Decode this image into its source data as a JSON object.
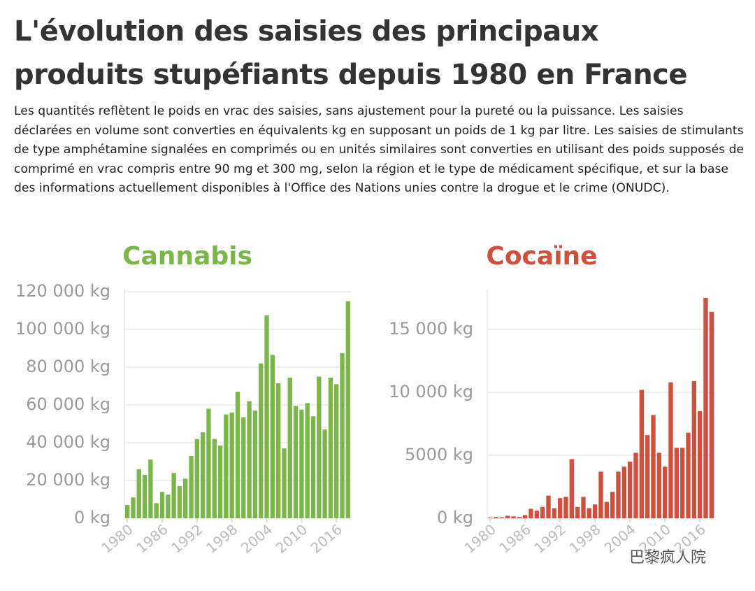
{
  "title": "L'évolution des saisies des principaux produits stupéfiants depuis 1980 en France",
  "subtitle": "Les quantités reflètent le poids en vrac des saisies, sans ajustement pour la pureté ou la puissance. Les saisies déclarées en volume sont converties en équivalents kg en supposant un poids de 1 kg par litre. Les saisies de stimulants de type amphétamine signalées en comprimés ou en unités similaires sont converties en utilisant des poids supposés de comprimé en vrac compris entre 90 mg et 300 mg, selon la région et le type de médicament spécifique, et sur la base des informations actuellement disponibles à l'Office des Nations unies contre la drogue et le crime (ONUDC).",
  "watermark": "巴黎疯人院",
  "chart_data": [
    {
      "type": "bar",
      "title": "Cannabis",
      "color": "#7ab648",
      "grid": true,
      "x": [
        1980,
        1981,
        1982,
        1983,
        1984,
        1985,
        1986,
        1987,
        1988,
        1989,
        1990,
        1991,
        1992,
        1993,
        1994,
        1995,
        1996,
        1997,
        1998,
        1999,
        2000,
        2001,
        2002,
        2003,
        2004,
        2005,
        2006,
        2007,
        2008,
        2009,
        2010,
        2011,
        2012,
        2013,
        2014,
        2015,
        2016,
        2017,
        2018
      ],
      "values": [
        7000,
        11000,
        26000,
        23000,
        31000,
        8000,
        14000,
        12500,
        24000,
        17000,
        21000,
        33000,
        42000,
        45500,
        58000,
        42000,
        38500,
        55000,
        56000,
        67000,
        53500,
        62000,
        57000,
        82000,
        107500,
        86500,
        71500,
        37000,
        74500,
        59500,
        57500,
        61000,
        54000,
        75000,
        47000,
        74500,
        71000,
        87500,
        115000
      ],
      "xlim": [
        1979.5,
        2018.5
      ],
      "xticks": [
        1980,
        1986,
        1992,
        1998,
        2004,
        2010,
        2016
      ],
      "ylim": [
        0,
        120000
      ],
      "yticks": [
        {
          "value": 0,
          "label": "0 kg"
        },
        {
          "value": 20000,
          "label": "20 000 kg"
        },
        {
          "value": 40000,
          "label": "40 000 kg"
        },
        {
          "value": 60000,
          "label": "60 000 kg"
        },
        {
          "value": 80000,
          "label": "80 000 kg"
        },
        {
          "value": 100000,
          "label": "100 000 kg"
        },
        {
          "value": 120000,
          "label": "120 000 kg"
        }
      ]
    },
    {
      "type": "bar",
      "title": "Cocaïne",
      "color": "#d0503e",
      "grid": true,
      "x": [
        1980,
        1981,
        1982,
        1983,
        1984,
        1985,
        1986,
        1987,
        1988,
        1989,
        1990,
        1991,
        1992,
        1993,
        1994,
        1995,
        1996,
        1997,
        1998,
        1999,
        2000,
        2001,
        2002,
        2003,
        2004,
        2005,
        2006,
        2007,
        2008,
        2009,
        2010,
        2011,
        2012,
        2013,
        2014,
        2015,
        2016,
        2017,
        2018
      ],
      "values": [
        50,
        100,
        80,
        200,
        150,
        100,
        250,
        750,
        600,
        900,
        1800,
        800,
        1600,
        1700,
        4700,
        900,
        1700,
        800,
        1100,
        3700,
        1300,
        2100,
        3700,
        4100,
        4500,
        5200,
        10200,
        6600,
        8200,
        5200,
        4100,
        10800,
        5600,
        5600,
        6800,
        10900,
        8500,
        17500,
        16400
      ],
      "xlim": [
        1979.5,
        2018.5
      ],
      "xticks": [
        1980,
        1986,
        1992,
        1998,
        2004,
        2010,
        2016
      ],
      "ylim": [
        0,
        18000
      ],
      "yticks": [
        {
          "value": 0,
          "label": "0 kg"
        },
        {
          "value": 5000,
          "label": "5000 kg"
        },
        {
          "value": 10000,
          "label": "10 000 kg"
        },
        {
          "value": 15000,
          "label": "15 000 kg"
        }
      ]
    }
  ]
}
